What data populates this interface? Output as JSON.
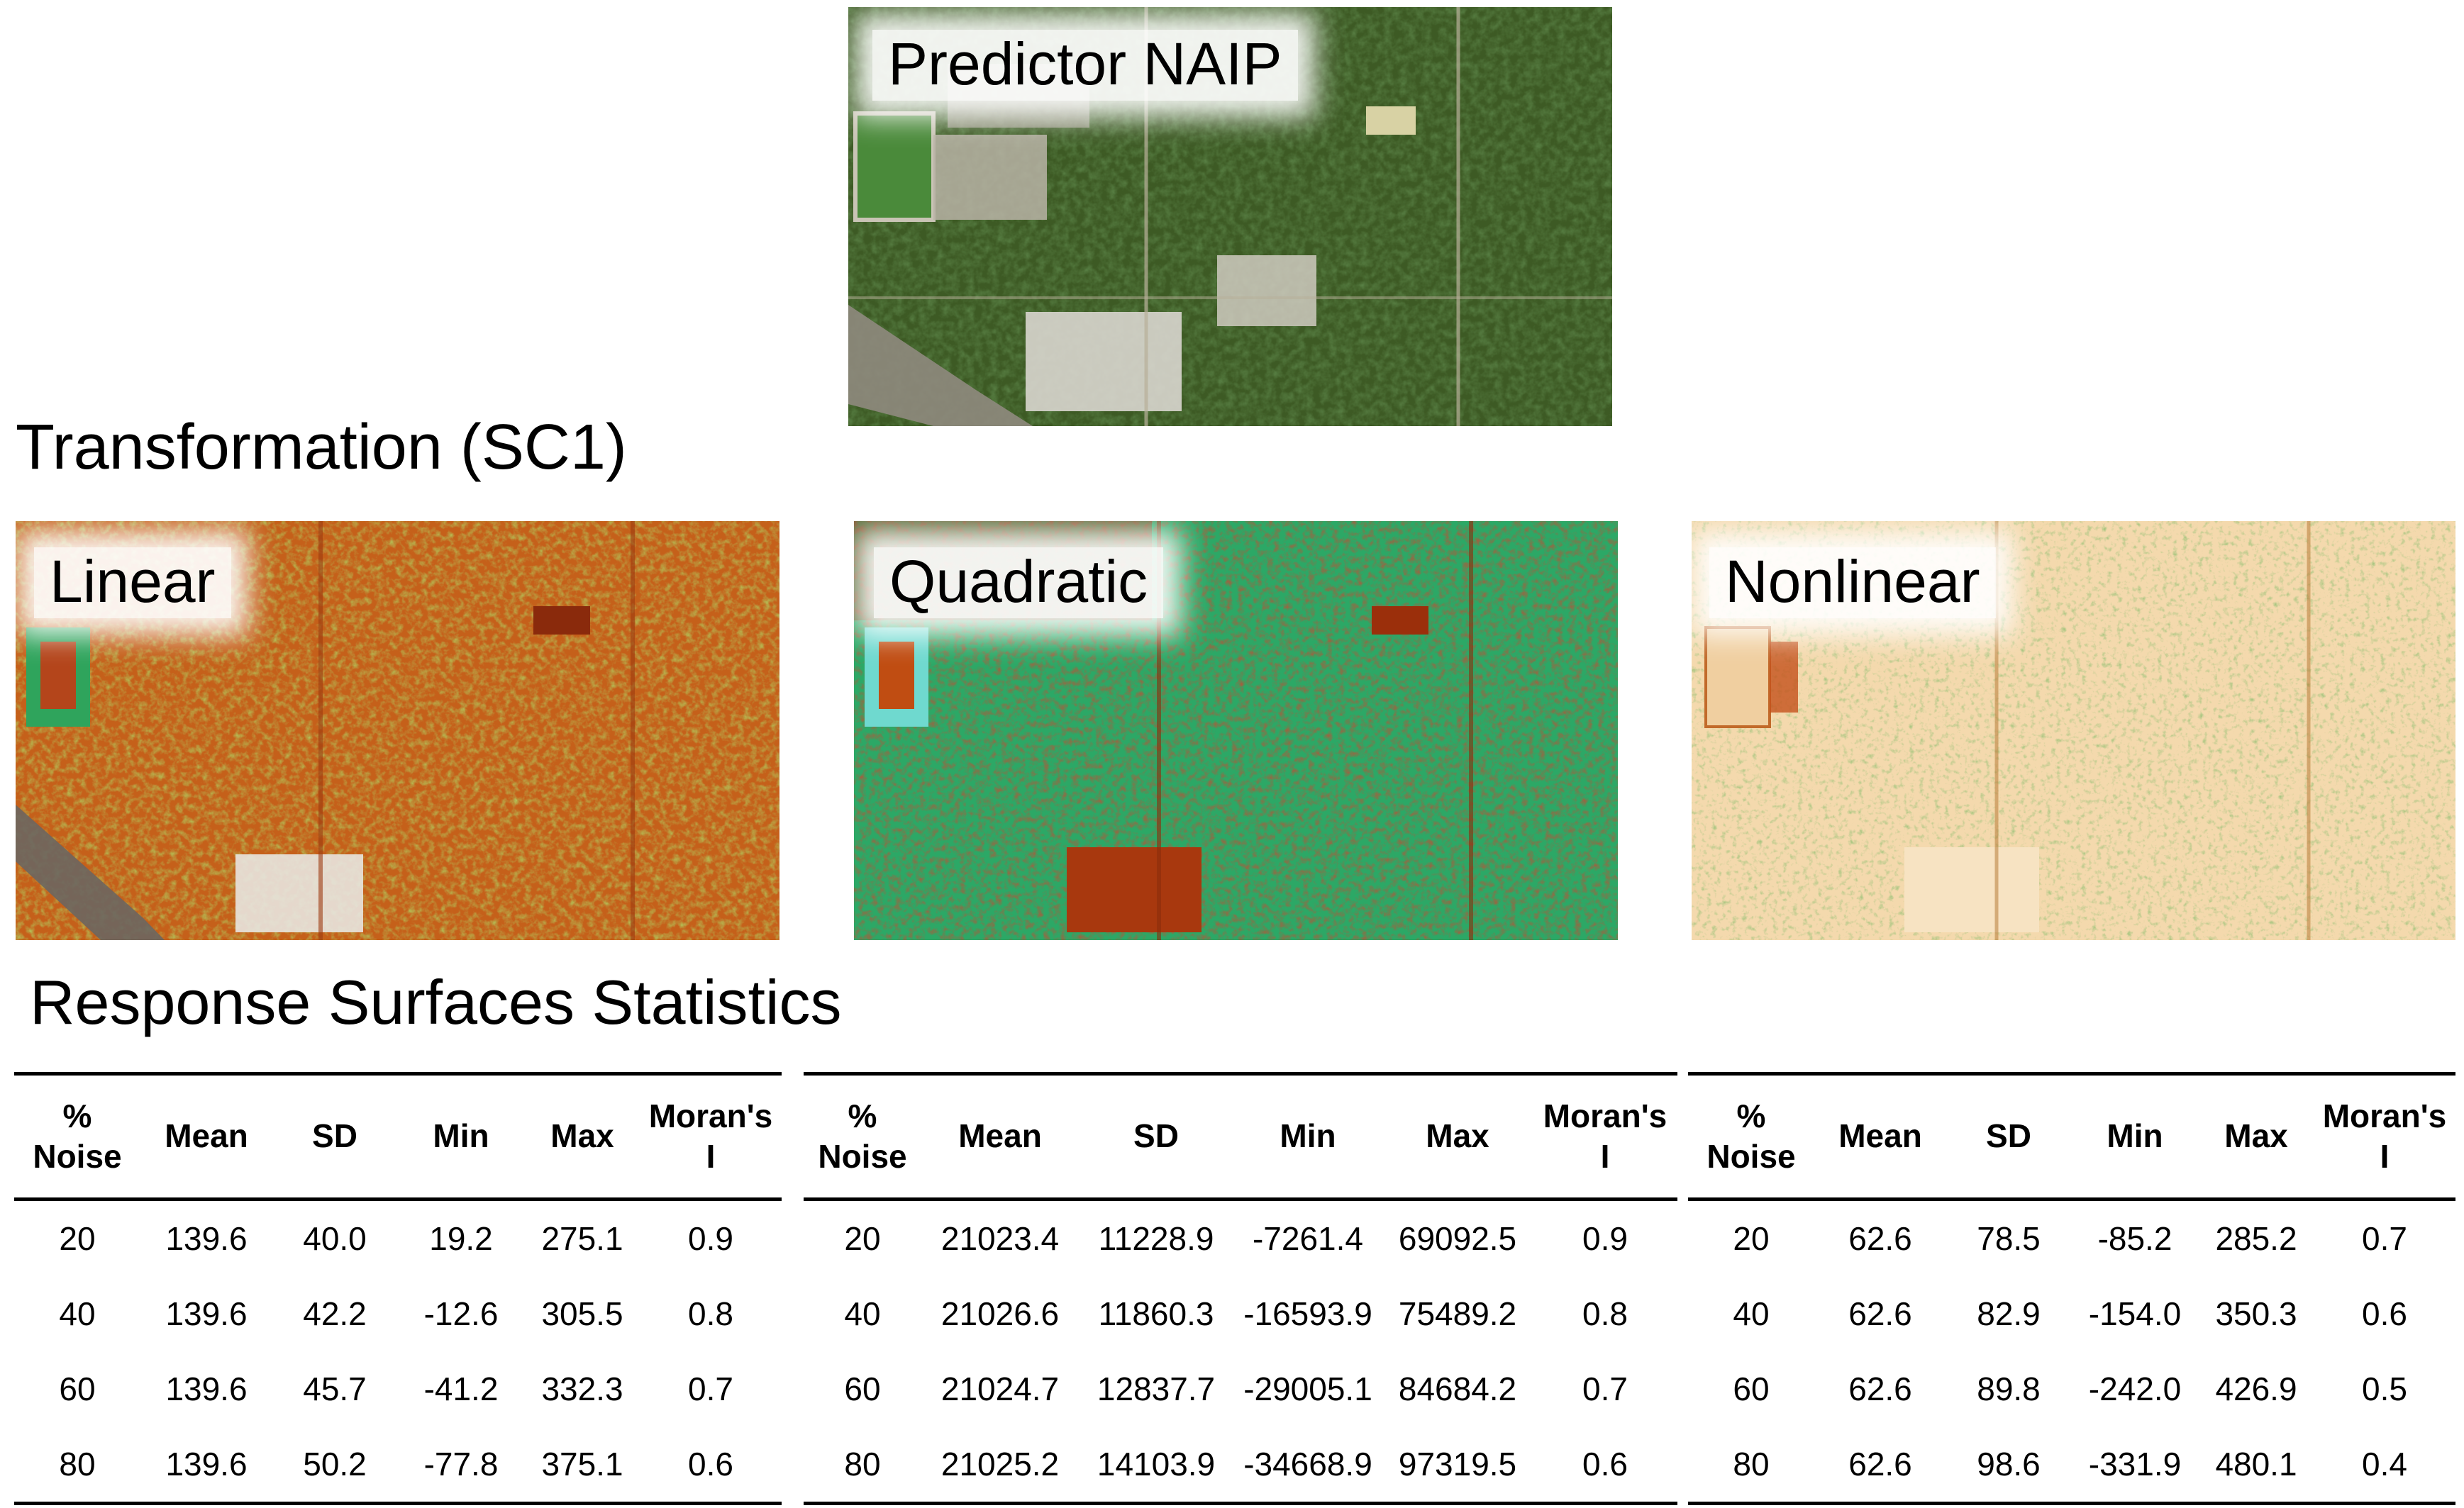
{
  "figure": {
    "top_label": "Predictor NAIP",
    "transformation_heading": "Transformation (SC1)",
    "panels": [
      {
        "label": "Linear"
      },
      {
        "label": "Quadratic"
      },
      {
        "label": "Nonlinear"
      }
    ],
    "stats_heading": "Response Surfaces Statistics",
    "tables": [
      {
        "columns": [
          "% Noise",
          "Mean",
          "SD",
          "Min",
          "Max",
          "Moran's I"
        ],
        "rows": [
          [
            "20",
            "139.6",
            "40.0",
            "19.2",
            "275.1",
            "0.9"
          ],
          [
            "40",
            "139.6",
            "42.2",
            "-12.6",
            "305.5",
            "0.8"
          ],
          [
            "60",
            "139.6",
            "45.7",
            "-41.2",
            "332.3",
            "0.7"
          ],
          [
            "80",
            "139.6",
            "50.2",
            "-77.8",
            "375.1",
            "0.6"
          ]
        ]
      },
      {
        "columns": [
          "% Noise",
          "Mean",
          "SD",
          "Min",
          "Max",
          "Moran's I"
        ],
        "rows": [
          [
            "20",
            "21023.4",
            "11228.9",
            "-7261.4",
            "69092.5",
            "0.9"
          ],
          [
            "40",
            "21026.6",
            "11860.3",
            "-16593.9",
            "75489.2",
            "0.8"
          ],
          [
            "60",
            "21024.7",
            "12837.7",
            "-29005.1",
            "84684.2",
            "0.7"
          ],
          [
            "80",
            "21025.2",
            "14103.9",
            "-34668.9",
            "97319.5",
            "0.6"
          ]
        ]
      },
      {
        "columns": [
          "% Noise",
          "Mean",
          "SD",
          "Min",
          "Max",
          "Moran's I"
        ],
        "rows": [
          [
            "20",
            "62.6",
            "78.5",
            "-85.2",
            "285.2",
            "0.7"
          ],
          [
            "40",
            "62.6",
            "82.9",
            "-154.0",
            "350.3",
            "0.6"
          ],
          [
            "60",
            "62.6",
            "89.8",
            "-242.0",
            "426.9",
            "0.5"
          ],
          [
            "80",
            "62.6",
            "98.6",
            "-331.9",
            "480.1",
            "0.4"
          ]
        ]
      }
    ]
  }
}
